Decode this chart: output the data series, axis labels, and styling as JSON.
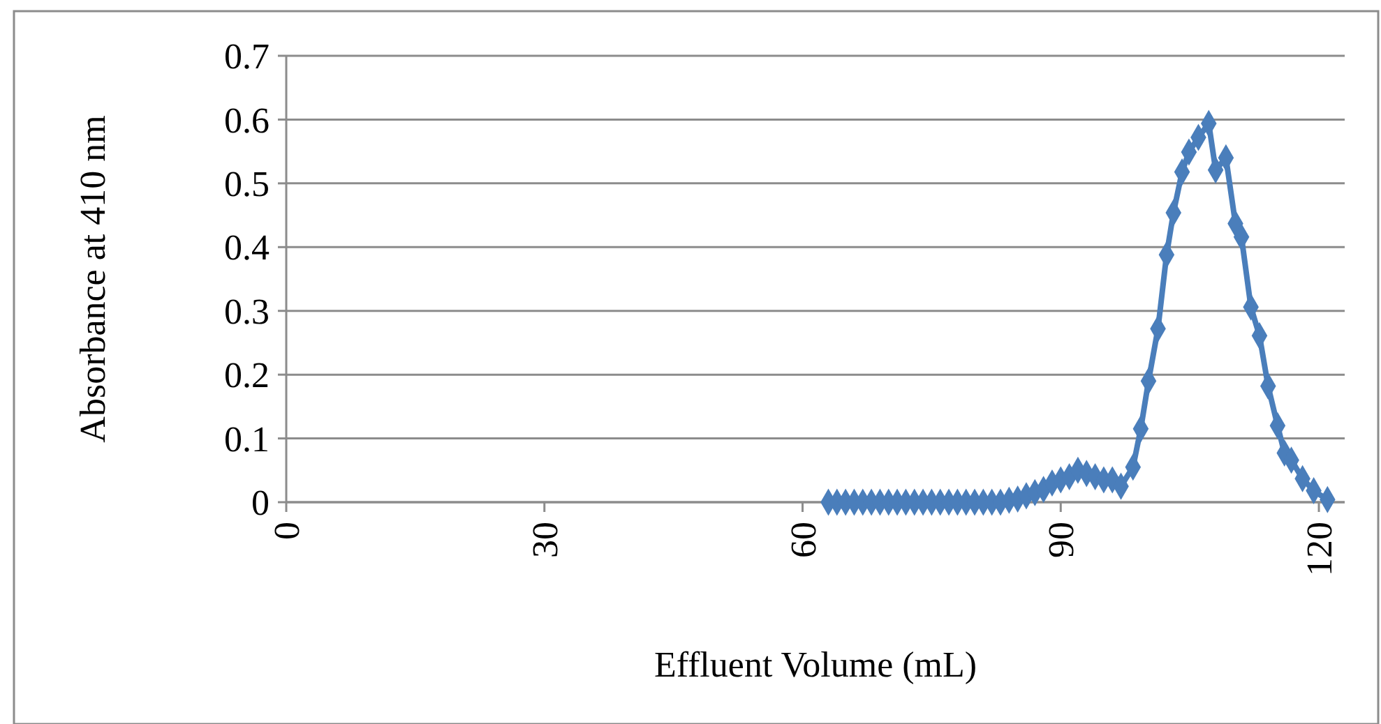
{
  "chart_data": {
    "type": "line",
    "xlabel": "Effluent Volume (mL)",
    "ylabel": "Absorbance at 410 nm",
    "x": [
      63,
      64,
      65,
      66,
      67,
      68,
      69,
      70,
      71,
      72,
      73,
      74,
      75,
      76,
      77,
      78,
      79,
      80,
      81,
      82,
      83,
      84,
      85,
      86,
      87,
      88,
      89,
      90,
      91,
      92,
      93,
      94,
      95,
      96,
      97,
      98.4,
      99.3,
      100.2,
      101.3,
      102.3,
      103.1,
      104.1,
      104.9,
      106,
      107.2,
      108,
      109.2,
      110.3,
      111,
      112.1,
      113.1,
      114.1,
      115.2,
      116,
      116.8,
      118.1,
      119.4,
      121
    ],
    "series": [
      {
        "color": "#4a7ebb",
        "values": [
          0,
          0,
          0,
          0,
          0,
          0,
          0,
          0,
          0,
          0,
          0,
          0,
          0,
          0,
          0,
          0,
          0,
          0,
          0,
          0,
          0,
          0.003,
          0.005,
          0.01,
          0.015,
          0.02,
          0.03,
          0.035,
          0.04,
          0.05,
          0.045,
          0.04,
          0.035,
          0.035,
          0.025,
          0.055,
          0.115,
          0.19,
          0.272,
          0.388,
          0.454,
          0.518,
          0.549,
          0.572,
          0.594,
          0.521,
          0.54,
          0.437,
          0.416,
          0.306,
          0.261,
          0.182,
          0.12,
          0.077,
          0.066,
          0.037,
          0.018,
          0.004
        ]
      }
    ],
    "xlim": [
      0,
      123
    ],
    "xticks": [
      0,
      30,
      60,
      90,
      120
    ],
    "ylim": [
      0,
      0.7
    ],
    "yticks": [
      0,
      0.1,
      0.2,
      0.3,
      0.4,
      0.5,
      0.6,
      0.7
    ],
    "grid": "y",
    "marker": "diamond",
    "line_style": "solid"
  }
}
